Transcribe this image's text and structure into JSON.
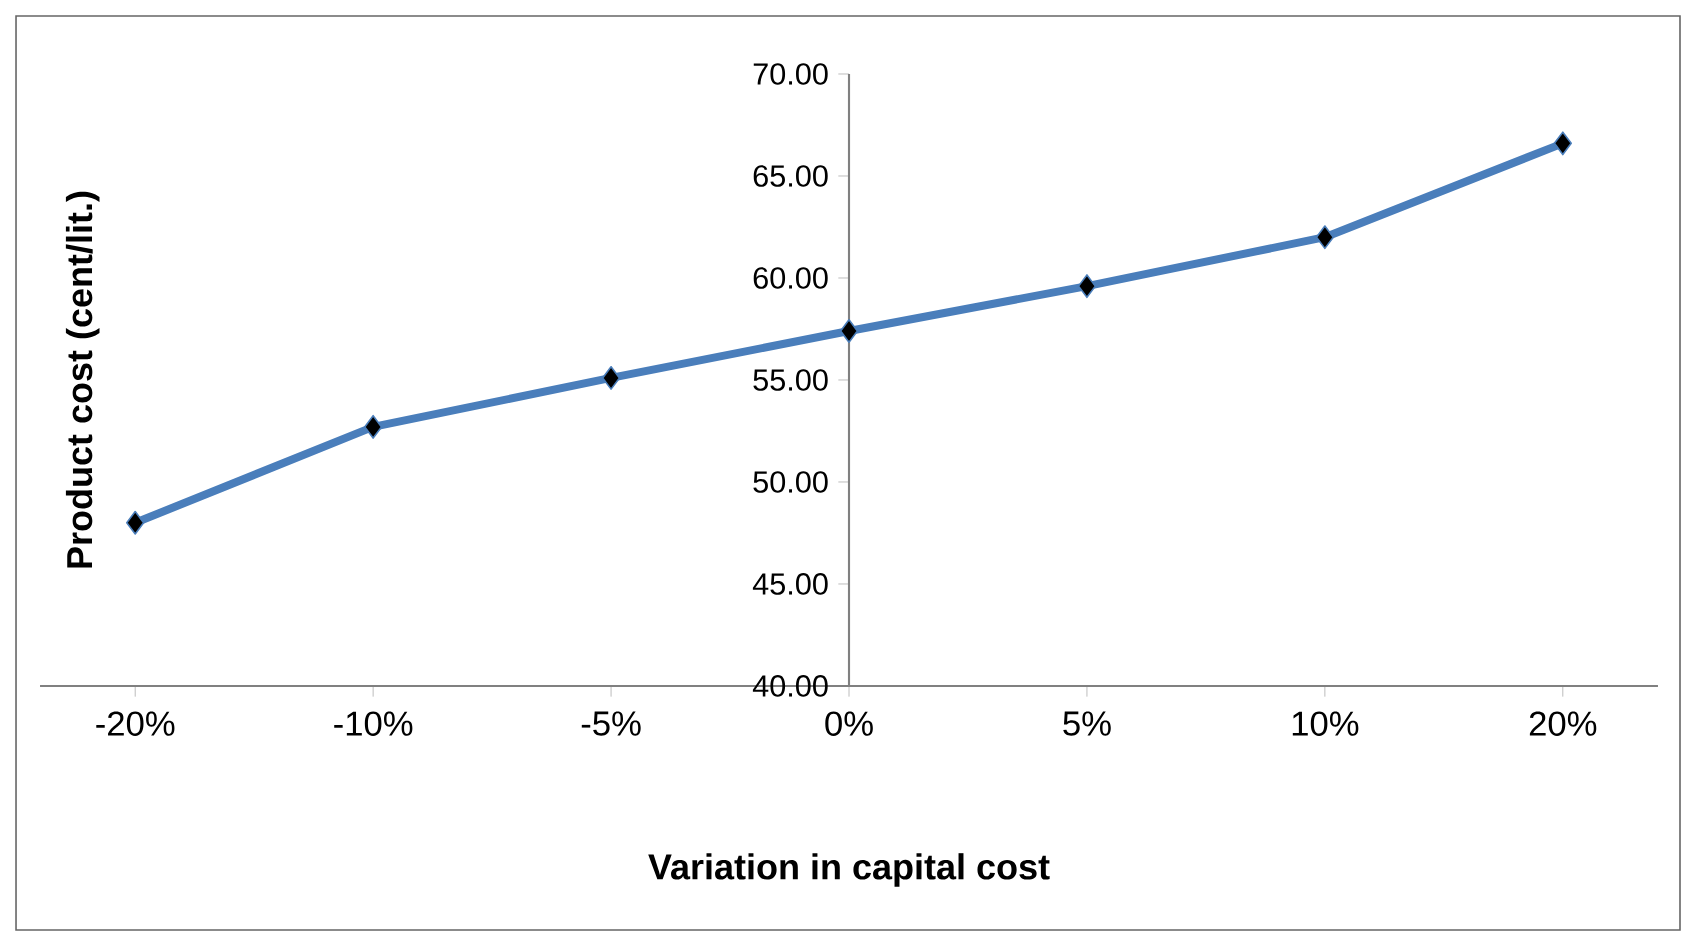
{
  "chart_data": {
    "type": "line",
    "xlabel": "Variation in capital cost",
    "ylabel": "Product cost (cent/lit.)",
    "categories": [
      "-20%",
      "-10%",
      "-5%",
      "0%",
      "5%",
      "10%",
      "20%"
    ],
    "values": [
      48.0,
      52.7,
      55.1,
      57.4,
      59.6,
      62.0,
      66.6
    ],
    "color": "#4a7ebb",
    "marker": "diamond",
    "line_style": "solid",
    "ylim": [
      40,
      70
    ],
    "yticks": [
      {
        "value": 40,
        "label": "40.00"
      },
      {
        "value": 45,
        "label": "45.00"
      },
      {
        "value": 50,
        "label": "50.00"
      },
      {
        "value": 55,
        "label": "55.00"
      },
      {
        "value": 60,
        "label": "60.00"
      },
      {
        "value": 65,
        "label": "65.00"
      },
      {
        "value": 70,
        "label": "70.00"
      }
    ]
  }
}
